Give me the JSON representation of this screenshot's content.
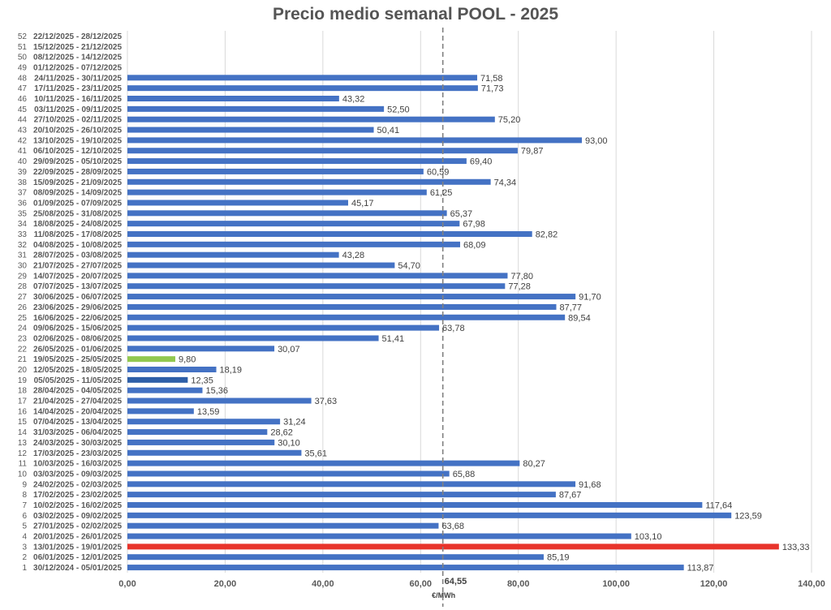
{
  "chart_data": {
    "type": "bar",
    "orientation": "horizontal",
    "title": "Precio medio semanal POOL - 2025",
    "xlabel": "€/MWh",
    "ylabel": "",
    "xlim": [
      0,
      140
    ],
    "x_ticks": [
      "0,00",
      "20,00",
      "40,00",
      "60,00",
      "80,00",
      "100,00",
      "120,00",
      "140,00"
    ],
    "grid": "vertical",
    "average": {
      "value": 64.55,
      "label": "64,55"
    },
    "colors": {
      "default": "#4472C4",
      "max": "#E8332B",
      "min": "#92C84F",
      "highlight": "#2E5FA8"
    },
    "weeks": [
      {
        "week": "52",
        "dates": "22/12/2025 - 28/12/2025",
        "value": null,
        "label": ""
      },
      {
        "week": "51",
        "dates": "15/12/2025 - 21/12/2025",
        "value": null,
        "label": ""
      },
      {
        "week": "50",
        "dates": "08/12/2025 - 14/12/2025",
        "value": null,
        "label": ""
      },
      {
        "week": "49",
        "dates": "01/12/2025 - 07/12/2025",
        "value": null,
        "label": ""
      },
      {
        "week": "48",
        "dates": "24/11/2025 - 30/11/2025",
        "value": 71.58,
        "label": "71,58"
      },
      {
        "week": "47",
        "dates": "17/11/2025 - 23/11/2025",
        "value": 71.73,
        "label": "71,73"
      },
      {
        "week": "46",
        "dates": "10/11/2025 - 16/11/2025",
        "value": 43.32,
        "label": "43,32"
      },
      {
        "week": "45",
        "dates": "03/11/2025 - 09/11/2025",
        "value": 52.5,
        "label": "52,50"
      },
      {
        "week": "44",
        "dates": "27/10/2025 - 02/11/2025",
        "value": 75.2,
        "label": "75,20"
      },
      {
        "week": "43",
        "dates": "20/10/2025 - 26/10/2025",
        "value": 50.41,
        "label": "50,41"
      },
      {
        "week": "42",
        "dates": "13/10/2025 - 19/10/2025",
        "value": 93.0,
        "label": "93,00"
      },
      {
        "week": "41",
        "dates": "06/10/2025 - 12/10/2025",
        "value": 79.87,
        "label": "79,87"
      },
      {
        "week": "40",
        "dates": "29/09/2025 - 05/10/2025",
        "value": 69.4,
        "label": "69,40"
      },
      {
        "week": "39",
        "dates": "22/09/2025 - 28/09/2025",
        "value": 60.59,
        "label": "60,59"
      },
      {
        "week": "38",
        "dates": "15/09/2025 - 21/09/2025",
        "value": 74.34,
        "label": "74,34"
      },
      {
        "week": "37",
        "dates": "08/09/2025 - 14/09/2025",
        "value": 61.25,
        "label": "61,25"
      },
      {
        "week": "36",
        "dates": "01/09/2025 - 07/09/2025",
        "value": 45.17,
        "label": "45,17"
      },
      {
        "week": "35",
        "dates": "25/08/2025 - 31/08/2025",
        "value": 65.37,
        "label": "65,37"
      },
      {
        "week": "34",
        "dates": "18/08/2025 - 24/08/2025",
        "value": 67.98,
        "label": "67,98"
      },
      {
        "week": "33",
        "dates": "11/08/2025 - 17/08/2025",
        "value": 82.82,
        "label": "82,82"
      },
      {
        "week": "32",
        "dates": "04/08/2025 - 10/08/2025",
        "value": 68.09,
        "label": "68,09"
      },
      {
        "week": "31",
        "dates": "28/07/2025 - 03/08/2025",
        "value": 43.28,
        "label": "43,28"
      },
      {
        "week": "30",
        "dates": "21/07/2025 - 27/07/2025",
        "value": 54.7,
        "label": "54,70"
      },
      {
        "week": "29",
        "dates": "14/07/2025 - 20/07/2025",
        "value": 77.8,
        "label": "77,80"
      },
      {
        "week": "28",
        "dates": "07/07/2025 - 13/07/2025",
        "value": 77.28,
        "label": "77,28"
      },
      {
        "week": "27",
        "dates": "30/06/2025 - 06/07/2025",
        "value": 91.7,
        "label": "91,70"
      },
      {
        "week": "26",
        "dates": "23/06/2025 - 29/06/2025",
        "value": 87.77,
        "label": "87,77"
      },
      {
        "week": "25",
        "dates": "16/06/2025 - 22/06/2025",
        "value": 89.54,
        "label": "89,54"
      },
      {
        "week": "24",
        "dates": "09/06/2025 - 15/06/2025",
        "value": 63.78,
        "label": "63,78"
      },
      {
        "week": "23",
        "dates": "02/06/2025 - 08/06/2025",
        "value": 51.41,
        "label": "51,41"
      },
      {
        "week": "22",
        "dates": "26/05/2025 - 01/06/2025",
        "value": 30.07,
        "label": "30,07"
      },
      {
        "week": "21",
        "dates": "19/05/2025 - 25/05/2025",
        "value": 9.8,
        "label": "9,80",
        "color": "#92C84F"
      },
      {
        "week": "20",
        "dates": "12/05/2025 - 18/05/2025",
        "value": 18.19,
        "label": "18,19"
      },
      {
        "week": "19",
        "dates": "05/05/2025 - 11/05/2025",
        "value": 12.35,
        "label": "12,35",
        "color": "#2E5FA8"
      },
      {
        "week": "18",
        "dates": "28/04/2025 - 04/05/2025",
        "value": 15.36,
        "label": "15,36"
      },
      {
        "week": "17",
        "dates": "21/04/2025 - 27/04/2025",
        "value": 37.63,
        "label": "37,63"
      },
      {
        "week": "16",
        "dates": "14/04/2025 - 20/04/2025",
        "value": 13.59,
        "label": "13,59"
      },
      {
        "week": "15",
        "dates": "07/04/2025 - 13/04/2025",
        "value": 31.24,
        "label": "31,24"
      },
      {
        "week": "14",
        "dates": "31/03/2025 - 06/04/2025",
        "value": 28.62,
        "label": "28,62"
      },
      {
        "week": "13",
        "dates": "24/03/2025 - 30/03/2025",
        "value": 30.1,
        "label": "30,10"
      },
      {
        "week": "12",
        "dates": "17/03/2025 - 23/03/2025",
        "value": 35.61,
        "label": "35,61"
      },
      {
        "week": "11",
        "dates": "10/03/2025 - 16/03/2025",
        "value": 80.27,
        "label": "80,27"
      },
      {
        "week": "10",
        "dates": "03/03/2025 - 09/03/2025",
        "value": 65.88,
        "label": "65,88"
      },
      {
        "week": "9",
        "dates": "24/02/2025 - 02/03/2025",
        "value": 91.68,
        "label": "91,68"
      },
      {
        "week": "8",
        "dates": "17/02/2025 - 23/02/2025",
        "value": 87.67,
        "label": "87,67"
      },
      {
        "week": "7",
        "dates": "10/02/2025 - 16/02/2025",
        "value": 117.64,
        "label": "117,64"
      },
      {
        "week": "6",
        "dates": "03/02/2025 - 09/02/2025",
        "value": 123.59,
        "label": "123,59"
      },
      {
        "week": "5",
        "dates": "27/01/2025 - 02/02/2025",
        "value": 63.68,
        "label": "63,68"
      },
      {
        "week": "4",
        "dates": "20/01/2025 - 26/01/2025",
        "value": 103.1,
        "label": "103,10"
      },
      {
        "week": "3",
        "dates": "13/01/2025 - 19/01/2025",
        "value": 133.33,
        "label": "133,33",
        "color": "#E8332B"
      },
      {
        "week": "2",
        "dates": "06/01/2025 - 12/01/2025",
        "value": 85.19,
        "label": "85,19"
      },
      {
        "week": "1",
        "dates": "30/12/2024 - 05/01/2025",
        "value": 113.87,
        "label": "113,87"
      }
    ]
  }
}
